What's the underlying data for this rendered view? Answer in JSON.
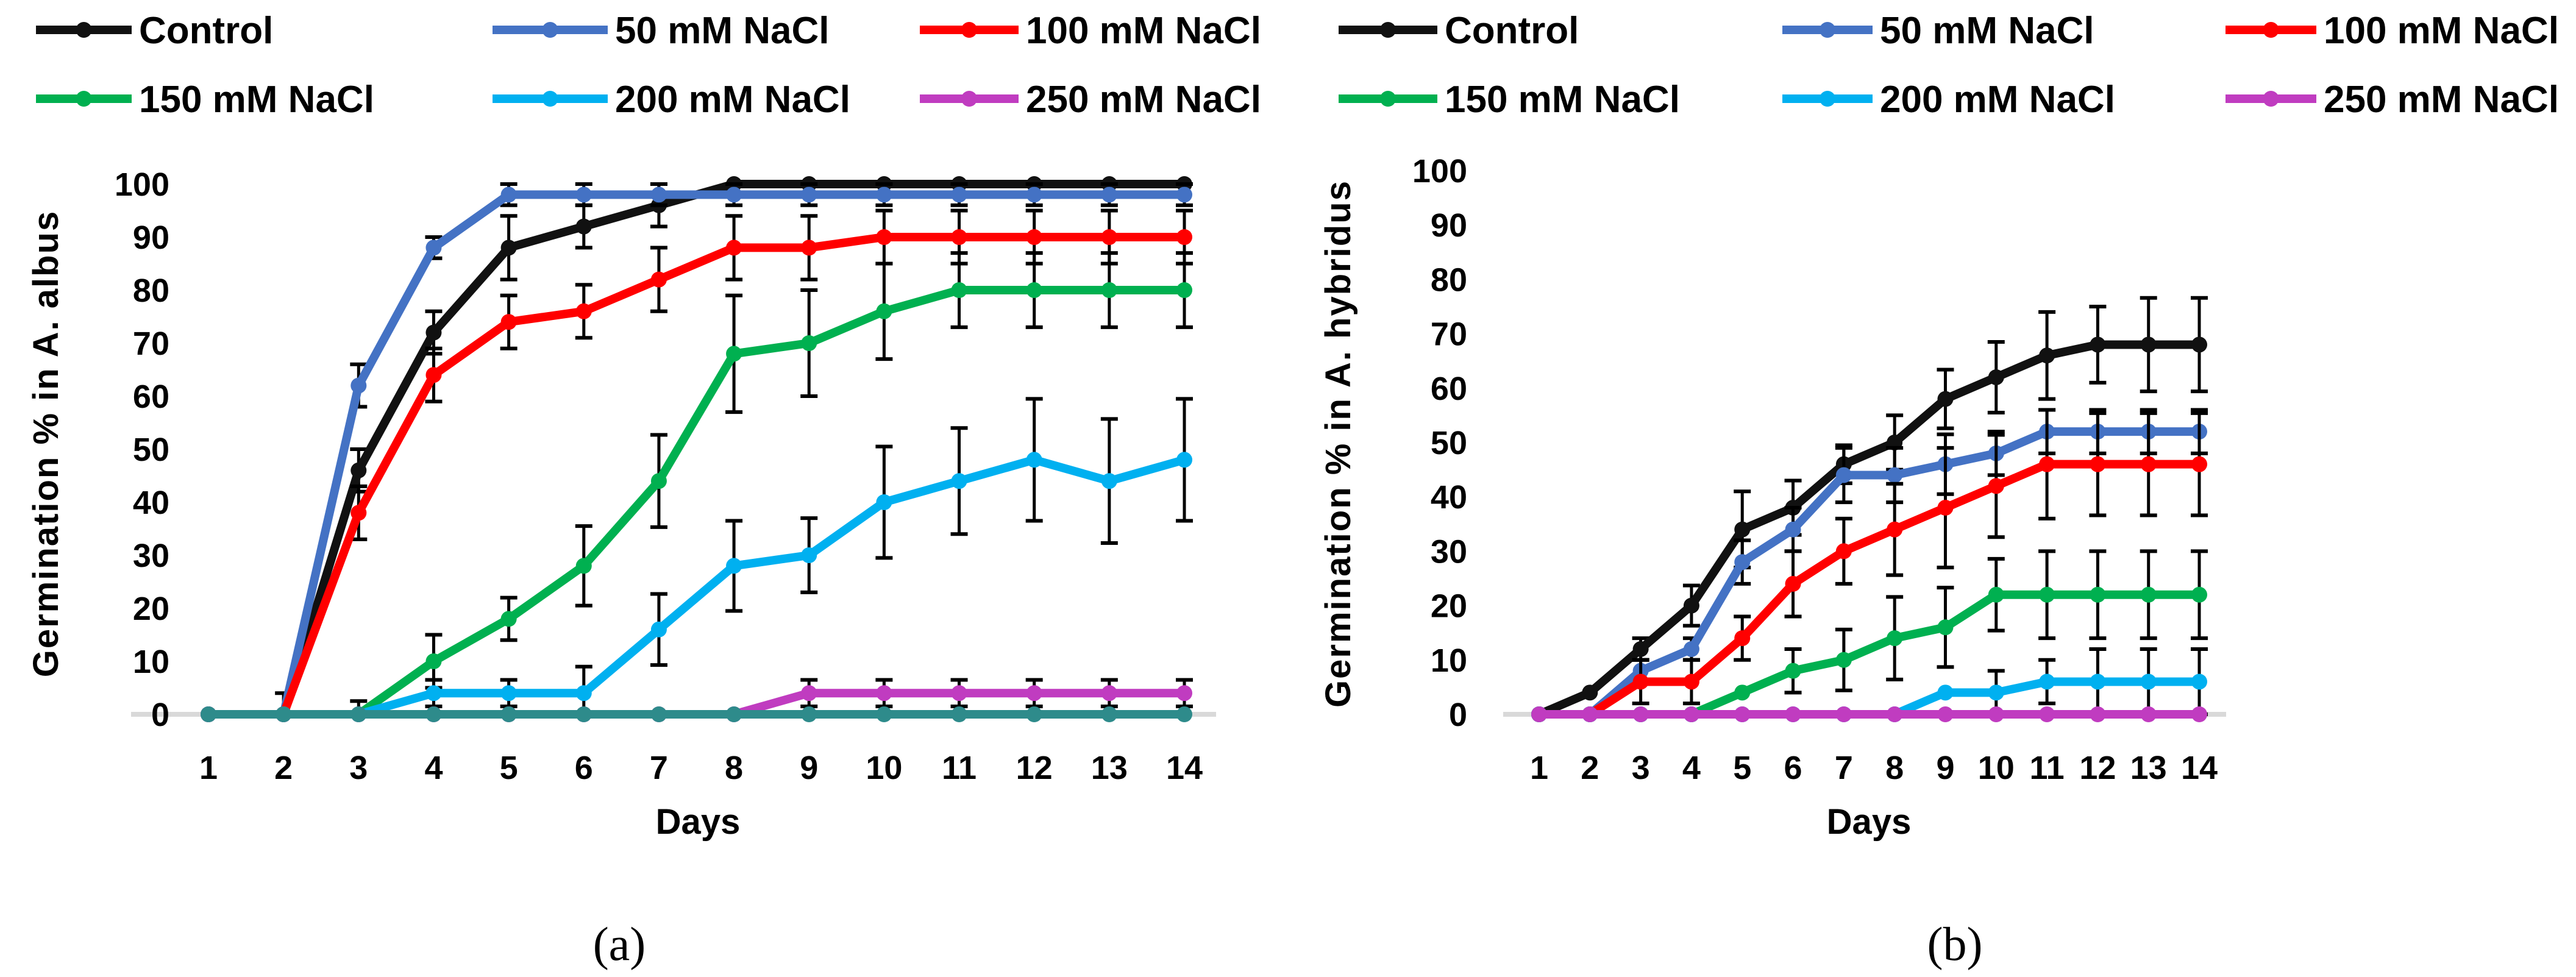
{
  "chart_data": [
    {
      "type": "line",
      "panel_label": "(a)",
      "xlabel": "Days",
      "ylabel": "Germination % in A. albus",
      "x": [
        1,
        2,
        3,
        4,
        5,
        6,
        7,
        8,
        9,
        10,
        11,
        12,
        13,
        14
      ],
      "ylim": [
        0,
        100
      ],
      "y_ticks": [
        "0",
        "10",
        "20",
        "30",
        "40",
        "50",
        "60",
        "70",
        "80",
        "90",
        "100"
      ],
      "grid": false,
      "legend_position": "top",
      "series": [
        {
          "name": "Control",
          "color": "#111111",
          "values": [
            0,
            0,
            46,
            72,
            88,
            92,
            96,
            100,
            100,
            100,
            100,
            100,
            100,
            100
          ],
          "errors": [
            0,
            4,
            4,
            4,
            6,
            4,
            4,
            0,
            0,
            0,
            0,
            0,
            0,
            0
          ]
        },
        {
          "name": "50 mM NaCl",
          "color": "#4472C4",
          "values": [
            0,
            0,
            62,
            88,
            98,
            98,
            98,
            98,
            98,
            98,
            98,
            98,
            98,
            98
          ],
          "errors": [
            0,
            0,
            4,
            2,
            2,
            2,
            2,
            2,
            2,
            2,
            2,
            2,
            2,
            2
          ]
        },
        {
          "name": "100 mM NaCl",
          "color": "#FF0000",
          "values": [
            0,
            0,
            38,
            64,
            74,
            76,
            82,
            88,
            88,
            90,
            90,
            90,
            90,
            90
          ],
          "errors": [
            0,
            0,
            5,
            5,
            5,
            5,
            6,
            6,
            6,
            5,
            5,
            5,
            5,
            5
          ]
        },
        {
          "name": "150 mM NaCl",
          "color": "#00B050",
          "values": [
            0,
            0,
            0,
            10,
            18,
            28,
            44,
            68,
            70,
            76,
            80,
            80,
            80,
            80
          ],
          "errors": [
            0,
            0,
            2.5,
            5,
            4,
            7.5,
            8.7,
            11,
            10,
            9,
            7,
            7,
            7,
            7
          ]
        },
        {
          "name": "200 mM NaCl",
          "color": "#00B0F0",
          "values": [
            0,
            0,
            0,
            4,
            4,
            4,
            16,
            28,
            30,
            40,
            44,
            48,
            44,
            48
          ],
          "errors": [
            0,
            0,
            0,
            2.5,
            2.5,
            5,
            6.7,
            8.5,
            7,
            10.5,
            10,
            11.5,
            11.7,
            11.5
          ]
        },
        {
          "name": "250 mM NaCl",
          "color": "#C03CC0",
          "values": [
            0,
            0,
            0,
            0,
            0,
            0,
            0,
            0,
            4,
            4,
            4,
            4,
            4,
            4
          ],
          "errors": [
            0,
            0,
            0,
            0,
            0,
            0,
            0,
            0,
            2.5,
            2.5,
            2.5,
            2.5,
            2.5,
            2.5
          ]
        },
        {
          "name": "",
          "color": "#2E8B8B",
          "values": [
            0,
            0,
            0,
            0,
            0,
            0,
            0,
            0,
            0,
            0,
            0,
            0,
            0,
            0
          ],
          "errors": [
            0,
            0,
            0,
            0,
            0,
            0,
            0,
            0,
            0,
            0,
            0,
            0,
            0,
            0
          ]
        }
      ]
    },
    {
      "type": "line",
      "panel_label": "(b)",
      "xlabel": "Days",
      "ylabel": "Germination % in A. hybridus",
      "x": [
        1,
        2,
        3,
        4,
        5,
        6,
        7,
        8,
        9,
        10,
        11,
        12,
        13,
        14
      ],
      "ylim": [
        0,
        100
      ],
      "y_ticks": [
        "0",
        "10",
        "20",
        "30",
        "40",
        "50",
        "60",
        "70",
        "80",
        "90",
        "100"
      ],
      "grid": false,
      "legend_position": "top",
      "series": [
        {
          "name": "Control",
          "color": "#111111",
          "values": [
            0,
            4,
            12,
            20,
            34,
            38,
            46,
            50,
            58,
            62,
            66,
            68,
            68,
            68
          ],
          "errors": [
            0,
            0,
            2,
            3.7,
            7,
            5,
            3.5,
            5,
            5.4,
            6.5,
            8,
            7,
            8.6,
            8.6
          ]
        },
        {
          "name": "50 mM NaCl",
          "color": "#4472C4",
          "values": [
            0,
            0,
            8,
            12,
            28,
            34,
            44,
            44,
            46,
            48,
            52,
            52,
            52,
            52
          ],
          "errors": [
            0,
            0,
            2,
            2,
            4,
            4,
            5,
            5,
            5.5,
            4,
            4,
            4,
            4,
            4
          ]
        },
        {
          "name": "100 mM NaCl",
          "color": "#FF0000",
          "values": [
            0,
            0,
            6,
            6,
            14,
            24,
            30,
            34,
            38,
            42,
            46,
            46,
            46,
            46
          ],
          "errors": [
            0,
            0,
            4,
            4,
            4,
            6,
            6,
            8.4,
            11,
            9.4,
            10,
            9.4,
            9.4,
            9.4
          ]
        },
        {
          "name": "150 mM NaCl",
          "color": "#00B050",
          "values": [
            0,
            0,
            0,
            0,
            4,
            8,
            10,
            14,
            16,
            22,
            22,
            22,
            22,
            22
          ],
          "errors": [
            0,
            0,
            0,
            0,
            0,
            4,
            5.6,
            7.6,
            7.3,
            6.6,
            8,
            8,
            8,
            8
          ]
        },
        {
          "name": "200 mM NaCl",
          "color": "#00B0F0",
          "values": [
            0,
            0,
            0,
            0,
            0,
            0,
            0,
            0,
            4,
            4,
            6,
            6,
            6,
            6
          ],
          "errors": [
            0,
            0,
            0,
            0,
            0,
            0,
            0,
            0,
            0,
            4,
            4,
            6,
            6,
            6
          ]
        },
        {
          "name": "250 mM NaCl",
          "color": "#C03CC0",
          "values": [
            0,
            0,
            0,
            0,
            0,
            0,
            0,
            0,
            0,
            0,
            0,
            0,
            0,
            0
          ],
          "errors": [
            0,
            0,
            0,
            0,
            0,
            0,
            0,
            0,
            0,
            0,
            0,
            0,
            0,
            0
          ]
        }
      ]
    }
  ]
}
